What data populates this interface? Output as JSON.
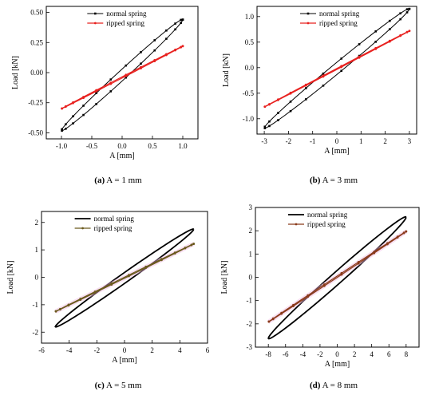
{
  "chart_data": [
    {
      "type": "line",
      "caption_tag": "(a)",
      "caption_text": "A = 1 mm",
      "xlabel": "A [mm]",
      "ylabel": "Load [kN]",
      "xlim": [
        -1.25,
        1.25
      ],
      "ylim": [
        -0.55,
        0.55
      ],
      "xticks": [
        -1.0,
        -0.5,
        0.0,
        0.5,
        1.0
      ],
      "xtick_labels": [
        "-1.0",
        "-0.5",
        "0.0",
        "0.5",
        "1.0"
      ],
      "yticks": [
        -0.5,
        -0.25,
        0.0,
        0.25,
        0.5
      ],
      "ytick_labels": [
        "-0.50",
        "-0.25",
        "0.00",
        "0.25",
        "0.50"
      ],
      "legend_position": "top-left",
      "series": [
        {
          "name": "normal spring",
          "color": "#000000",
          "marker": "square",
          "loop": {
            "amplitude": 1,
            "min_load": -0.48,
            "max_load": 0.44,
            "half_width": 0.05
          }
        },
        {
          "name": "ripped spring",
          "color": "#e8211f",
          "marker": "dot",
          "loop": {
            "amplitude": 1,
            "min_load": -0.3,
            "max_load": 0.22,
            "half_width": 0.005
          }
        }
      ]
    },
    {
      "type": "line",
      "caption_tag": "(b)",
      "caption_text": "A = 3 mm",
      "xlabel": "A [mm]",
      "ylabel": "Load [kN]",
      "xlim": [
        -3.3,
        3.3
      ],
      "ylim": [
        -1.3,
        1.2
      ],
      "xticks": [
        -3,
        -2,
        -1,
        0,
        1,
        2,
        3
      ],
      "xtick_labels": [
        "-3",
        "-2",
        "-1",
        "0",
        "1",
        "2",
        "3"
      ],
      "yticks": [
        -1.0,
        -0.5,
        0.0,
        0.5,
        1.0
      ],
      "ytick_labels": [
        "-1.0",
        "-0.5",
        "0.0",
        "0.5",
        "1.0"
      ],
      "legend_position": "top-left",
      "series": [
        {
          "name": "normal spring",
          "color": "#000000",
          "marker": "square",
          "loop": {
            "amplitude": 3,
            "min_load": -1.18,
            "max_load": 1.15,
            "half_width": 0.12
          }
        },
        {
          "name": "ripped spring",
          "color": "#e8211f",
          "marker": "dot",
          "loop": {
            "amplitude": 3,
            "min_load": -0.77,
            "max_load": 0.72,
            "half_width": 0.01
          }
        }
      ]
    },
    {
      "type": "line",
      "caption_tag": "(c)",
      "caption_text": "A = 5 mm",
      "xlabel": "A [mm]",
      "ylabel": "Load [kN]",
      "xlim": [
        -6,
        6
      ],
      "ylim": [
        -2.4,
        2.4
      ],
      "xticks": [
        -6,
        -4,
        -2,
        0,
        2,
        4,
        6
      ],
      "xtick_labels": [
        "-6",
        "-4",
        "-2",
        "0",
        "2",
        "4",
        "6"
      ],
      "yticks": [
        -2,
        -1,
        0,
        1,
        2
      ],
      "ytick_labels": [
        "-2",
        "-1",
        "0",
        "1",
        "2"
      ],
      "legend_position": "top-left",
      "series": [
        {
          "name": "normal spring",
          "color": "#000000",
          "marker": "none",
          "loop": {
            "amplitude": 5,
            "min_load": -1.8,
            "max_load": 1.75,
            "half_width": 0.2
          }
        },
        {
          "name": "ripped spring",
          "color": "#6b5a1e",
          "marker": "dot",
          "loop": {
            "amplitude": 5,
            "min_load": -1.25,
            "max_load": 1.22,
            "half_width": 0.02
          }
        }
      ]
    },
    {
      "type": "line",
      "caption_tag": "(d)",
      "caption_text": "A = 8 mm",
      "xlabel": "A [mm]",
      "ylabel": "Load [kN]",
      "xlim": [
        -9.5,
        9.5
      ],
      "ylim": [
        -3,
        3
      ],
      "xticks": [
        -8,
        -6,
        -4,
        -2,
        0,
        2,
        4,
        6,
        8
      ],
      "xtick_labels": [
        "-8",
        "-6",
        "-4",
        "-2",
        "0",
        "2",
        "4",
        "6",
        "8"
      ],
      "yticks": [
        -3,
        -2,
        -1,
        0,
        1,
        2,
        3
      ],
      "ytick_labels": [
        "-3",
        "-2",
        "-1",
        "0",
        "1",
        "2",
        "3"
      ],
      "legend_position": "top-left",
      "series": [
        {
          "name": "normal spring",
          "color": "#000000",
          "marker": "none",
          "loop": {
            "amplitude": 8,
            "min_load": -2.62,
            "max_load": 2.58,
            "half_width": 0.32
          }
        },
        {
          "name": "ripped spring",
          "color": "#8a3a1a",
          "marker": "dot",
          "loop": {
            "amplitude": 8,
            "min_load": -1.92,
            "max_load": 1.97,
            "half_width": 0.03
          }
        }
      ]
    }
  ]
}
